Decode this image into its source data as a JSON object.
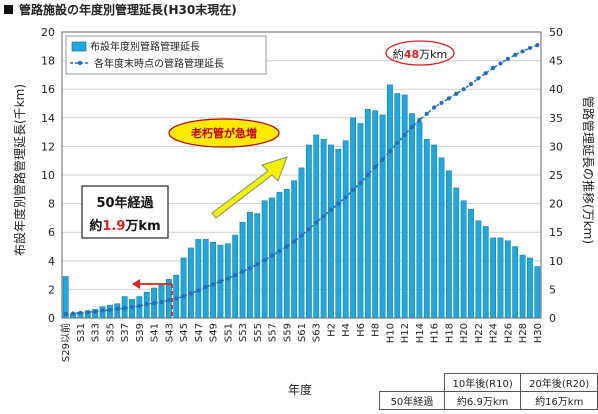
{
  "title": "管路施設の年度別管理延長(H30末現在)",
  "chart_data": {
    "type": "bar",
    "title": "管路施設の年度別管理延長(H30末現在)",
    "xlabel": "年度",
    "ylabel": "布設年度別管路管理延長(千km)",
    "y2label": "管路管理延長の推移(万km)",
    "ylim": [
      0,
      20
    ],
    "y2lim": [
      0,
      50
    ],
    "yticks": [
      "0",
      "2",
      "4",
      "6",
      "8",
      "10",
      "12",
      "14",
      "16",
      "18",
      "20"
    ],
    "y2ticks": [
      "0",
      "5",
      "10",
      "15",
      "20",
      "25",
      "30",
      "35",
      "40",
      "45",
      "50"
    ],
    "categories": [
      "S29以前",
      "S30",
      "S31",
      "S32",
      "S33",
      "S34",
      "S35",
      "S36",
      "S37",
      "S38",
      "S39",
      "S40",
      "S41",
      "S42",
      "S43",
      "S44",
      "S45",
      "S46",
      "S47",
      "S48",
      "S49",
      "S50",
      "S51",
      "S52",
      "S53",
      "S54",
      "S55",
      "S56",
      "S57",
      "S58",
      "S59",
      "S60",
      "S61",
      "S62",
      "S63",
      "H1",
      "H2",
      "H3",
      "H4",
      "H5",
      "H6",
      "H7",
      "H8",
      "H9",
      "H10",
      "H11",
      "H12",
      "H13",
      "H14",
      "H15",
      "H16",
      "H17",
      "H18",
      "H19",
      "H20",
      "H21",
      "H22",
      "H23",
      "H24",
      "H25",
      "H26",
      "H27",
      "H28",
      "H29",
      "H30"
    ],
    "xticklabels": [
      "S29以前",
      "S31",
      "S33",
      "S35",
      "S37",
      "S39",
      "S41",
      "S43",
      "S45",
      "S47",
      "S49",
      "S51",
      "S53",
      "S55",
      "S57",
      "S59",
      "S61",
      "S63",
      "H2",
      "H4",
      "H6",
      "H8",
      "H10",
      "H12",
      "H14",
      "H16",
      "H18",
      "H20",
      "H22",
      "H24",
      "H26",
      "H28",
      "H30"
    ],
    "grid": true,
    "legend_position": "top-left",
    "series": [
      {
        "name": "布設年度別管路管理延長",
        "type": "bar",
        "axis": "left",
        "color": "#1fa8dc",
        "values": [
          2.9,
          0.3,
          0.4,
          0.5,
          0.6,
          0.8,
          0.9,
          1.0,
          1.5,
          1.3,
          1.5,
          1.8,
          2.1,
          2.3,
          2.7,
          3.0,
          4.2,
          4.9,
          5.5,
          5.5,
          5.3,
          5.1,
          5.2,
          5.8,
          6.7,
          7.4,
          7.3,
          8.2,
          8.4,
          8.8,
          9.0,
          9.6,
          10.5,
          12.1,
          12.8,
          12.5,
          12.1,
          11.8,
          12.4,
          14.0,
          13.6,
          14.6,
          14.5,
          14.2,
          16.3,
          15.7,
          15.6,
          14.3,
          13.7,
          12.5,
          12.1,
          11.2,
          10.3,
          9.1,
          8.2,
          7.6,
          6.8,
          6.4,
          5.6,
          5.6,
          5.4,
          5.0,
          4.4,
          4.2,
          3.6
        ]
      },
      {
        "name": "各年度末時点の管路管理延長",
        "type": "line",
        "axis": "right",
        "color": "#1f6fc0",
        "values": [
          0.7,
          0.8,
          0.9,
          1.0,
          1.1,
          1.3,
          1.4,
          1.6,
          1.7,
          1.9,
          2.1,
          2.4,
          2.6,
          2.8,
          3.1,
          3.4,
          3.8,
          4.3,
          4.8,
          5.4,
          5.9,
          6.4,
          6.9,
          7.5,
          8.1,
          8.7,
          9.4,
          10.1,
          10.9,
          11.7,
          12.5,
          13.4,
          14.4,
          15.5,
          16.7,
          17.8,
          18.9,
          20.0,
          21.1,
          22.4,
          23.6,
          25.0,
          26.4,
          27.7,
          29.2,
          30.6,
          32.0,
          33.4,
          34.6,
          35.7,
          36.8,
          37.6,
          38.4,
          39.2,
          40.0,
          40.9,
          41.9,
          42.8,
          43.7,
          44.5,
          45.3,
          46.0,
          46.6,
          47.2,
          47.7
        ]
      }
    ],
    "annotations": {
      "rapid_increase": "老朽管が急増",
      "fifty_years_line1": "50年経過",
      "fifty_years_prefix": "約",
      "fifty_years_value": "1.9",
      "fifty_years_suffix": "万km",
      "total_prefix": "約",
      "total_value": "48",
      "total_suffix": "万km"
    }
  },
  "summary_table": {
    "header": [
      "10年後(R10)",
      "20年後(R20)"
    ],
    "row_label": "50年経過",
    "row_values": [
      "約6.9万km",
      "約16万km"
    ]
  },
  "colors": {
    "bar": "#1fa8dc",
    "line": "#1f6fc0",
    "highlight_red": "#e02020",
    "callout_yellow": "#ffea00",
    "arrow_yellow": "#f2f200"
  }
}
